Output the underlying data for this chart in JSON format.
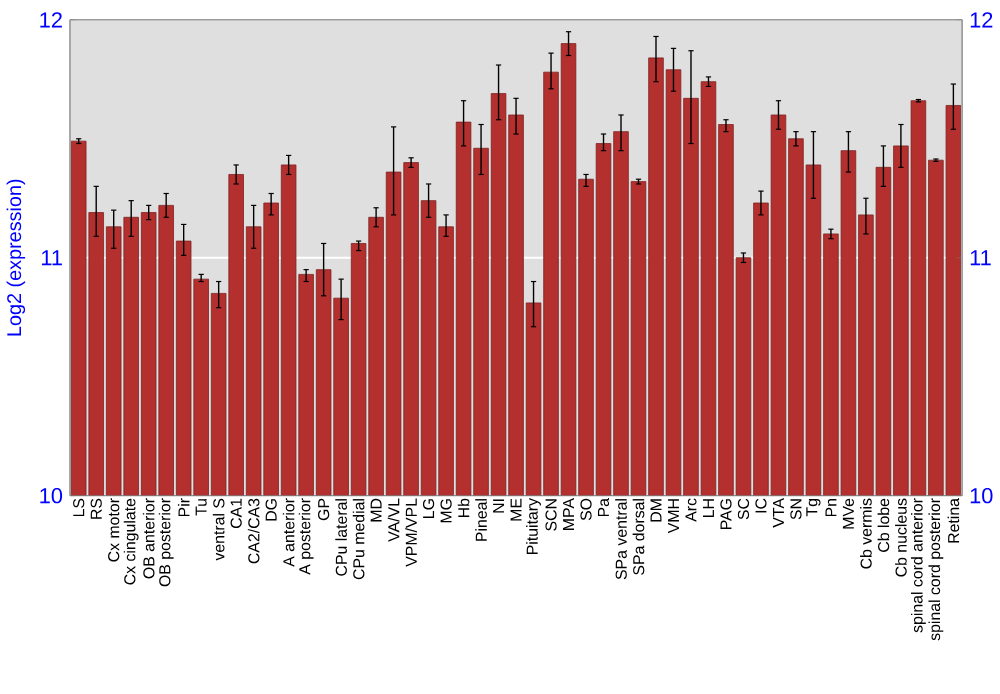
{
  "chart_data": {
    "type": "bar",
    "ylabel": "Log2 (expression)",
    "categories": [
      "LS",
      "RS",
      "Cx motor",
      "Cx cingulate",
      "OB anterior",
      "OB posterior",
      "Pir",
      "Tu",
      "ventral S",
      "CA1",
      "CA2/CA3",
      "DG",
      "A anterior",
      "A posterior",
      "GP",
      "CPu lateral",
      "CPu medial",
      "MD",
      "VA/VL",
      "VPM/VPL",
      "LG",
      "MG",
      "Hb",
      "Pineal",
      "NI",
      "ME",
      "Pituitary",
      "SCN",
      "MPA",
      "SO",
      "Pa",
      "SPa ventral",
      "SPa dorsal",
      "DM",
      "VMH",
      "Arc",
      "LH",
      "PAG",
      "SC",
      "IC",
      "VTA",
      "SN",
      "Tg",
      "Pn",
      "MVe",
      "Cb vermis",
      "Cb lobe",
      "Cb nucleus",
      "spinal cord anterior",
      "spinal cord posterior",
      "Retina"
    ],
    "values": [
      11.49,
      11.19,
      11.13,
      11.17,
      11.19,
      11.22,
      11.07,
      10.91,
      10.85,
      11.35,
      11.13,
      11.23,
      11.39,
      10.93,
      10.95,
      10.83,
      11.06,
      11.17,
      11.36,
      11.4,
      11.24,
      11.13,
      11.57,
      11.46,
      11.69,
      11.6,
      10.81,
      11.78,
      11.9,
      11.33,
      11.48,
      11.53,
      11.32,
      11.84,
      11.79,
      11.67,
      11.74,
      11.56,
      11.0,
      11.23,
      11.6,
      11.5,
      11.39,
      11.1,
      11.45,
      11.18,
      11.38,
      11.47,
      11.66,
      11.41,
      11.64
    ],
    "errors": [
      [
        11.48,
        11.5
      ],
      [
        11.09,
        11.3
      ],
      [
        11.04,
        11.2
      ],
      [
        11.09,
        11.24
      ],
      [
        11.16,
        11.22
      ],
      [
        11.17,
        11.27
      ],
      [
        11.01,
        11.14
      ],
      [
        10.9,
        10.93
      ],
      [
        10.79,
        10.9
      ],
      [
        11.31,
        11.39
      ],
      [
        11.04,
        11.22
      ],
      [
        11.18,
        11.27
      ],
      [
        11.35,
        11.43
      ],
      [
        10.9,
        10.95
      ],
      [
        10.84,
        11.06
      ],
      [
        10.74,
        10.91
      ],
      [
        11.03,
        11.07
      ],
      [
        11.13,
        11.21
      ],
      [
        11.18,
        11.55
      ],
      [
        11.38,
        11.42
      ],
      [
        11.17,
        11.31
      ],
      [
        11.09,
        11.18
      ],
      [
        11.47,
        11.66
      ],
      [
        11.35,
        11.56
      ],
      [
        11.58,
        11.81
      ],
      [
        11.52,
        11.67
      ],
      [
        10.71,
        10.9
      ],
      [
        11.71,
        11.86
      ],
      [
        11.85,
        11.95
      ],
      [
        11.3,
        11.35
      ],
      [
        11.45,
        11.52
      ],
      [
        11.45,
        11.6
      ],
      [
        11.31,
        11.33
      ],
      [
        11.74,
        11.93
      ],
      [
        11.7,
        11.88
      ],
      [
        11.48,
        11.87
      ],
      [
        11.72,
        11.76
      ],
      [
        11.53,
        11.58
      ],
      [
        10.98,
        11.02
      ],
      [
        11.18,
        11.28
      ],
      [
        11.54,
        11.66
      ],
      [
        11.47,
        11.53
      ],
      [
        11.25,
        11.53
      ],
      [
        11.08,
        11.12
      ],
      [
        11.36,
        11.53
      ],
      [
        11.1,
        11.25
      ],
      [
        11.3,
        11.47
      ],
      [
        11.38,
        11.56
      ],
      [
        11.655,
        11.665
      ],
      [
        11.405,
        11.415
      ],
      [
        11.54,
        11.73
      ]
    ],
    "color": "#b3302f",
    "ylim": [
      10,
      12
    ],
    "yticks": [
      10,
      11,
      12
    ],
    "y2lim": [
      10,
      12
    ],
    "y2ticks": [
      10,
      11,
      12
    ],
    "grid": "y"
  }
}
